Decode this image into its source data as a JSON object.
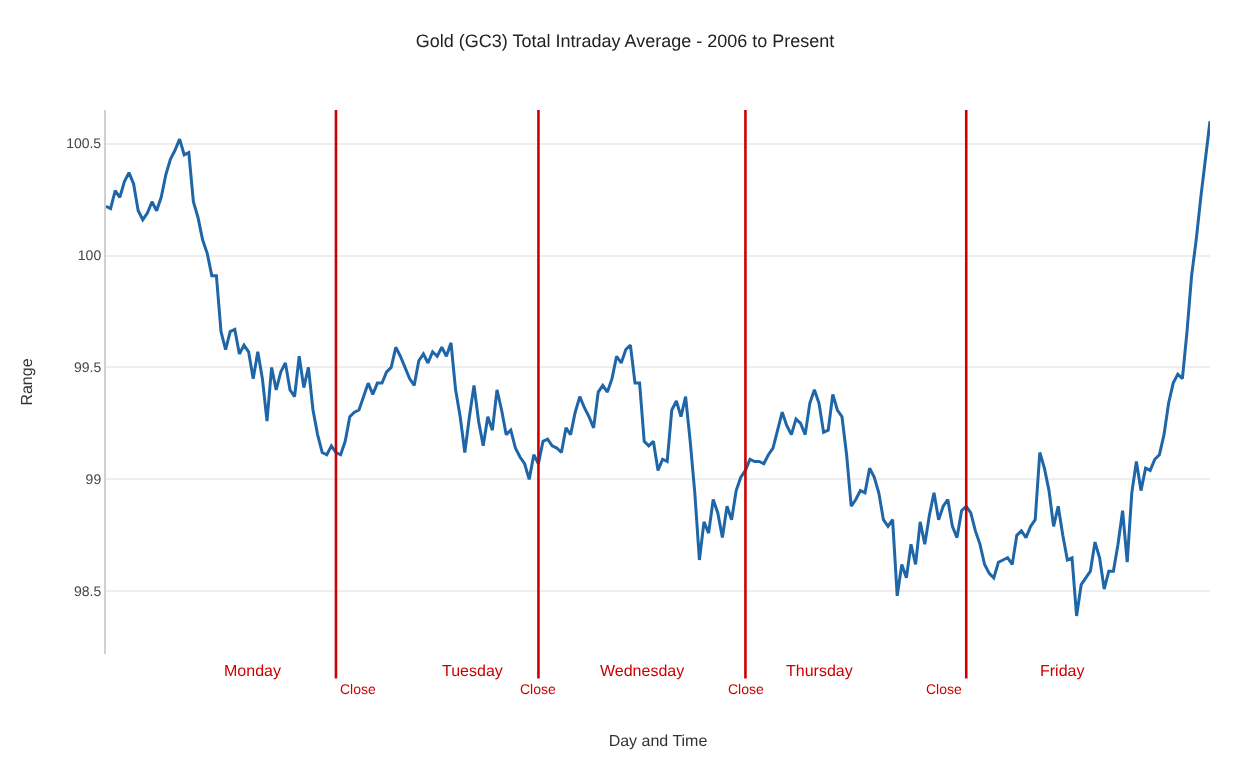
{
  "chart_data": {
    "type": "line",
    "title": "Gold (GC3) Total Intraday Average - 2006 to Present",
    "xlabel": "Day and Time",
    "ylabel": "Range",
    "categories": [
      null,
      null,
      null,
      null,
      null,
      null,
      null,
      null,
      null,
      null,
      null,
      null,
      null,
      null,
      null,
      null,
      null,
      null,
      null,
      null,
      null,
      null,
      null,
      null,
      null,
      null,
      null,
      null,
      null,
      null,
      null,
      null,
      null,
      null,
      null,
      null,
      null,
      null,
      null,
      null,
      null,
      null,
      null,
      null,
      null,
      null,
      null,
      null,
      null,
      null,
      null,
      null,
      null,
      null,
      null,
      null,
      null,
      null,
      null,
      null,
      null,
      null,
      null,
      null,
      null,
      null,
      null,
      null,
      null,
      null,
      null,
      null,
      null,
      null,
      null,
      null,
      null,
      null,
      null,
      null,
      null,
      null,
      null,
      null,
      null,
      null,
      null,
      null,
      null,
      null,
      null,
      null,
      null,
      null,
      null,
      null,
      null,
      null,
      null,
      null,
      null,
      null,
      null,
      null,
      null,
      null,
      null,
      null,
      null,
      null,
      null,
      null,
      null,
      null,
      null,
      null,
      null,
      null,
      null,
      null,
      null,
      null,
      null,
      null,
      null,
      null,
      null,
      null,
      null,
      null,
      null,
      null,
      null,
      null,
      null,
      null,
      null,
      null,
      null,
      null,
      null,
      null,
      null,
      null,
      null,
      null,
      null,
      null,
      null,
      null,
      null,
      null,
      null,
      null,
      null,
      null,
      null,
      null,
      null,
      null,
      null,
      null,
      null,
      null,
      null,
      null,
      null,
      null,
      null,
      null,
      null,
      null,
      null,
      null,
      null,
      null,
      null,
      null,
      null,
      null,
      null,
      null,
      null,
      null,
      null,
      null,
      null,
      null,
      null,
      null,
      null,
      null,
      null,
      null,
      null,
      null,
      null,
      null,
      null,
      null,
      null,
      null,
      null,
      null,
      null,
      null,
      null,
      null,
      null,
      null,
      null,
      null,
      null,
      null,
      null,
      null,
      null,
      null,
      null,
      null,
      null,
      null,
      null,
      null,
      null,
      null,
      null,
      null,
      null,
      null,
      null,
      null,
      null,
      null,
      null,
      null,
      null,
      null,
      null,
      null,
      null
    ],
    "series": [
      {
        "color": "#1f66a8",
        "values": [
          100.22,
          100.21,
          100.29,
          100.26,
          100.33,
          100.37,
          100.32,
          100.2,
          100.16,
          100.19,
          100.24,
          100.2,
          100.26,
          100.36,
          100.43,
          100.47,
          100.52,
          100.45,
          100.46,
          100.24,
          100.17,
          100.07,
          100.01,
          99.91,
          99.91,
          99.66,
          99.58,
          99.66,
          99.67,
          99.56,
          99.6,
          99.57,
          99.45,
          99.57,
          99.45,
          99.26,
          99.5,
          99.4,
          99.48,
          99.52,
          99.4,
          99.37,
          99.55,
          99.41,
          99.5,
          99.31,
          99.2,
          99.12,
          99.11,
          99.15,
          99.12,
          99.11,
          99.17,
          99.28,
          99.3,
          99.31,
          99.37,
          99.43,
          99.38,
          99.43,
          99.43,
          99.48,
          99.5,
          99.59,
          99.55,
          99.5,
          99.45,
          99.42,
          99.53,
          99.56,
          99.52,
          99.57,
          99.55,
          99.59,
          99.55,
          99.61,
          99.4,
          99.28,
          99.12,
          99.28,
          99.42,
          99.26,
          99.15,
          99.28,
          99.22,
          99.4,
          99.31,
          99.2,
          99.22,
          99.14,
          99.1,
          99.07,
          99.0,
          99.11,
          99.07,
          99.17,
          99.18,
          99.15,
          99.14,
          99.12,
          99.23,
          99.2,
          99.3,
          99.37,
          99.32,
          99.28,
          99.23,
          99.39,
          99.42,
          99.39,
          99.45,
          99.55,
          99.52,
          99.58,
          99.6,
          99.43,
          99.43,
          99.17,
          99.15,
          99.17,
          99.04,
          99.09,
          99.08,
          99.31,
          99.35,
          99.28,
          99.37,
          99.17,
          98.94,
          98.64,
          98.81,
          98.76,
          98.91,
          98.85,
          98.74,
          98.88,
          98.82,
          98.95,
          99.01,
          99.04,
          99.09,
          99.08,
          99.08,
          99.07,
          99.11,
          99.14,
          99.22,
          99.3,
          99.24,
          99.2,
          99.27,
          99.25,
          99.2,
          99.34,
          99.4,
          99.34,
          99.21,
          99.22,
          99.38,
          99.31,
          99.28,
          99.11,
          98.88,
          98.91,
          98.95,
          98.94,
          99.05,
          99.01,
          98.94,
          98.82,
          98.79,
          98.82,
          98.48,
          98.62,
          98.56,
          98.71,
          98.62,
          98.81,
          98.71,
          98.84,
          98.94,
          98.82,
          98.88,
          98.91,
          98.79,
          98.74,
          98.86,
          98.88,
          98.85,
          98.77,
          98.71,
          98.62,
          98.58,
          98.56,
          98.63,
          98.64,
          98.65,
          98.62,
          98.75,
          98.77,
          98.74,
          98.79,
          98.82,
          99.12,
          99.05,
          98.95,
          98.79,
          98.88,
          98.75,
          98.64,
          98.65,
          98.39,
          98.53,
          98.56,
          98.59,
          98.72,
          98.65,
          98.51,
          98.59,
          98.59,
          98.71,
          98.86,
          98.63,
          98.94,
          99.08,
          98.95,
          99.05,
          99.04,
          99.09,
          99.11,
          99.2,
          99.34,
          99.43,
          99.47,
          99.45,
          99.66,
          99.91,
          100.07,
          100.26,
          100.43,
          100.6
        ]
      }
    ],
    "ylim": [
      98.22,
      100.65
    ],
    "yticks": [
      98.5,
      99,
      99.5,
      100,
      100.5
    ],
    "annotations": [
      "Monday",
      "Close",
      "Tuesday",
      "Close",
      "Wednesday",
      "Close",
      "Thursday",
      "Close",
      "Friday"
    ],
    "grid": "y",
    "tick_labels": "y",
    "marker": "none",
    "line_style": "solid"
  }
}
